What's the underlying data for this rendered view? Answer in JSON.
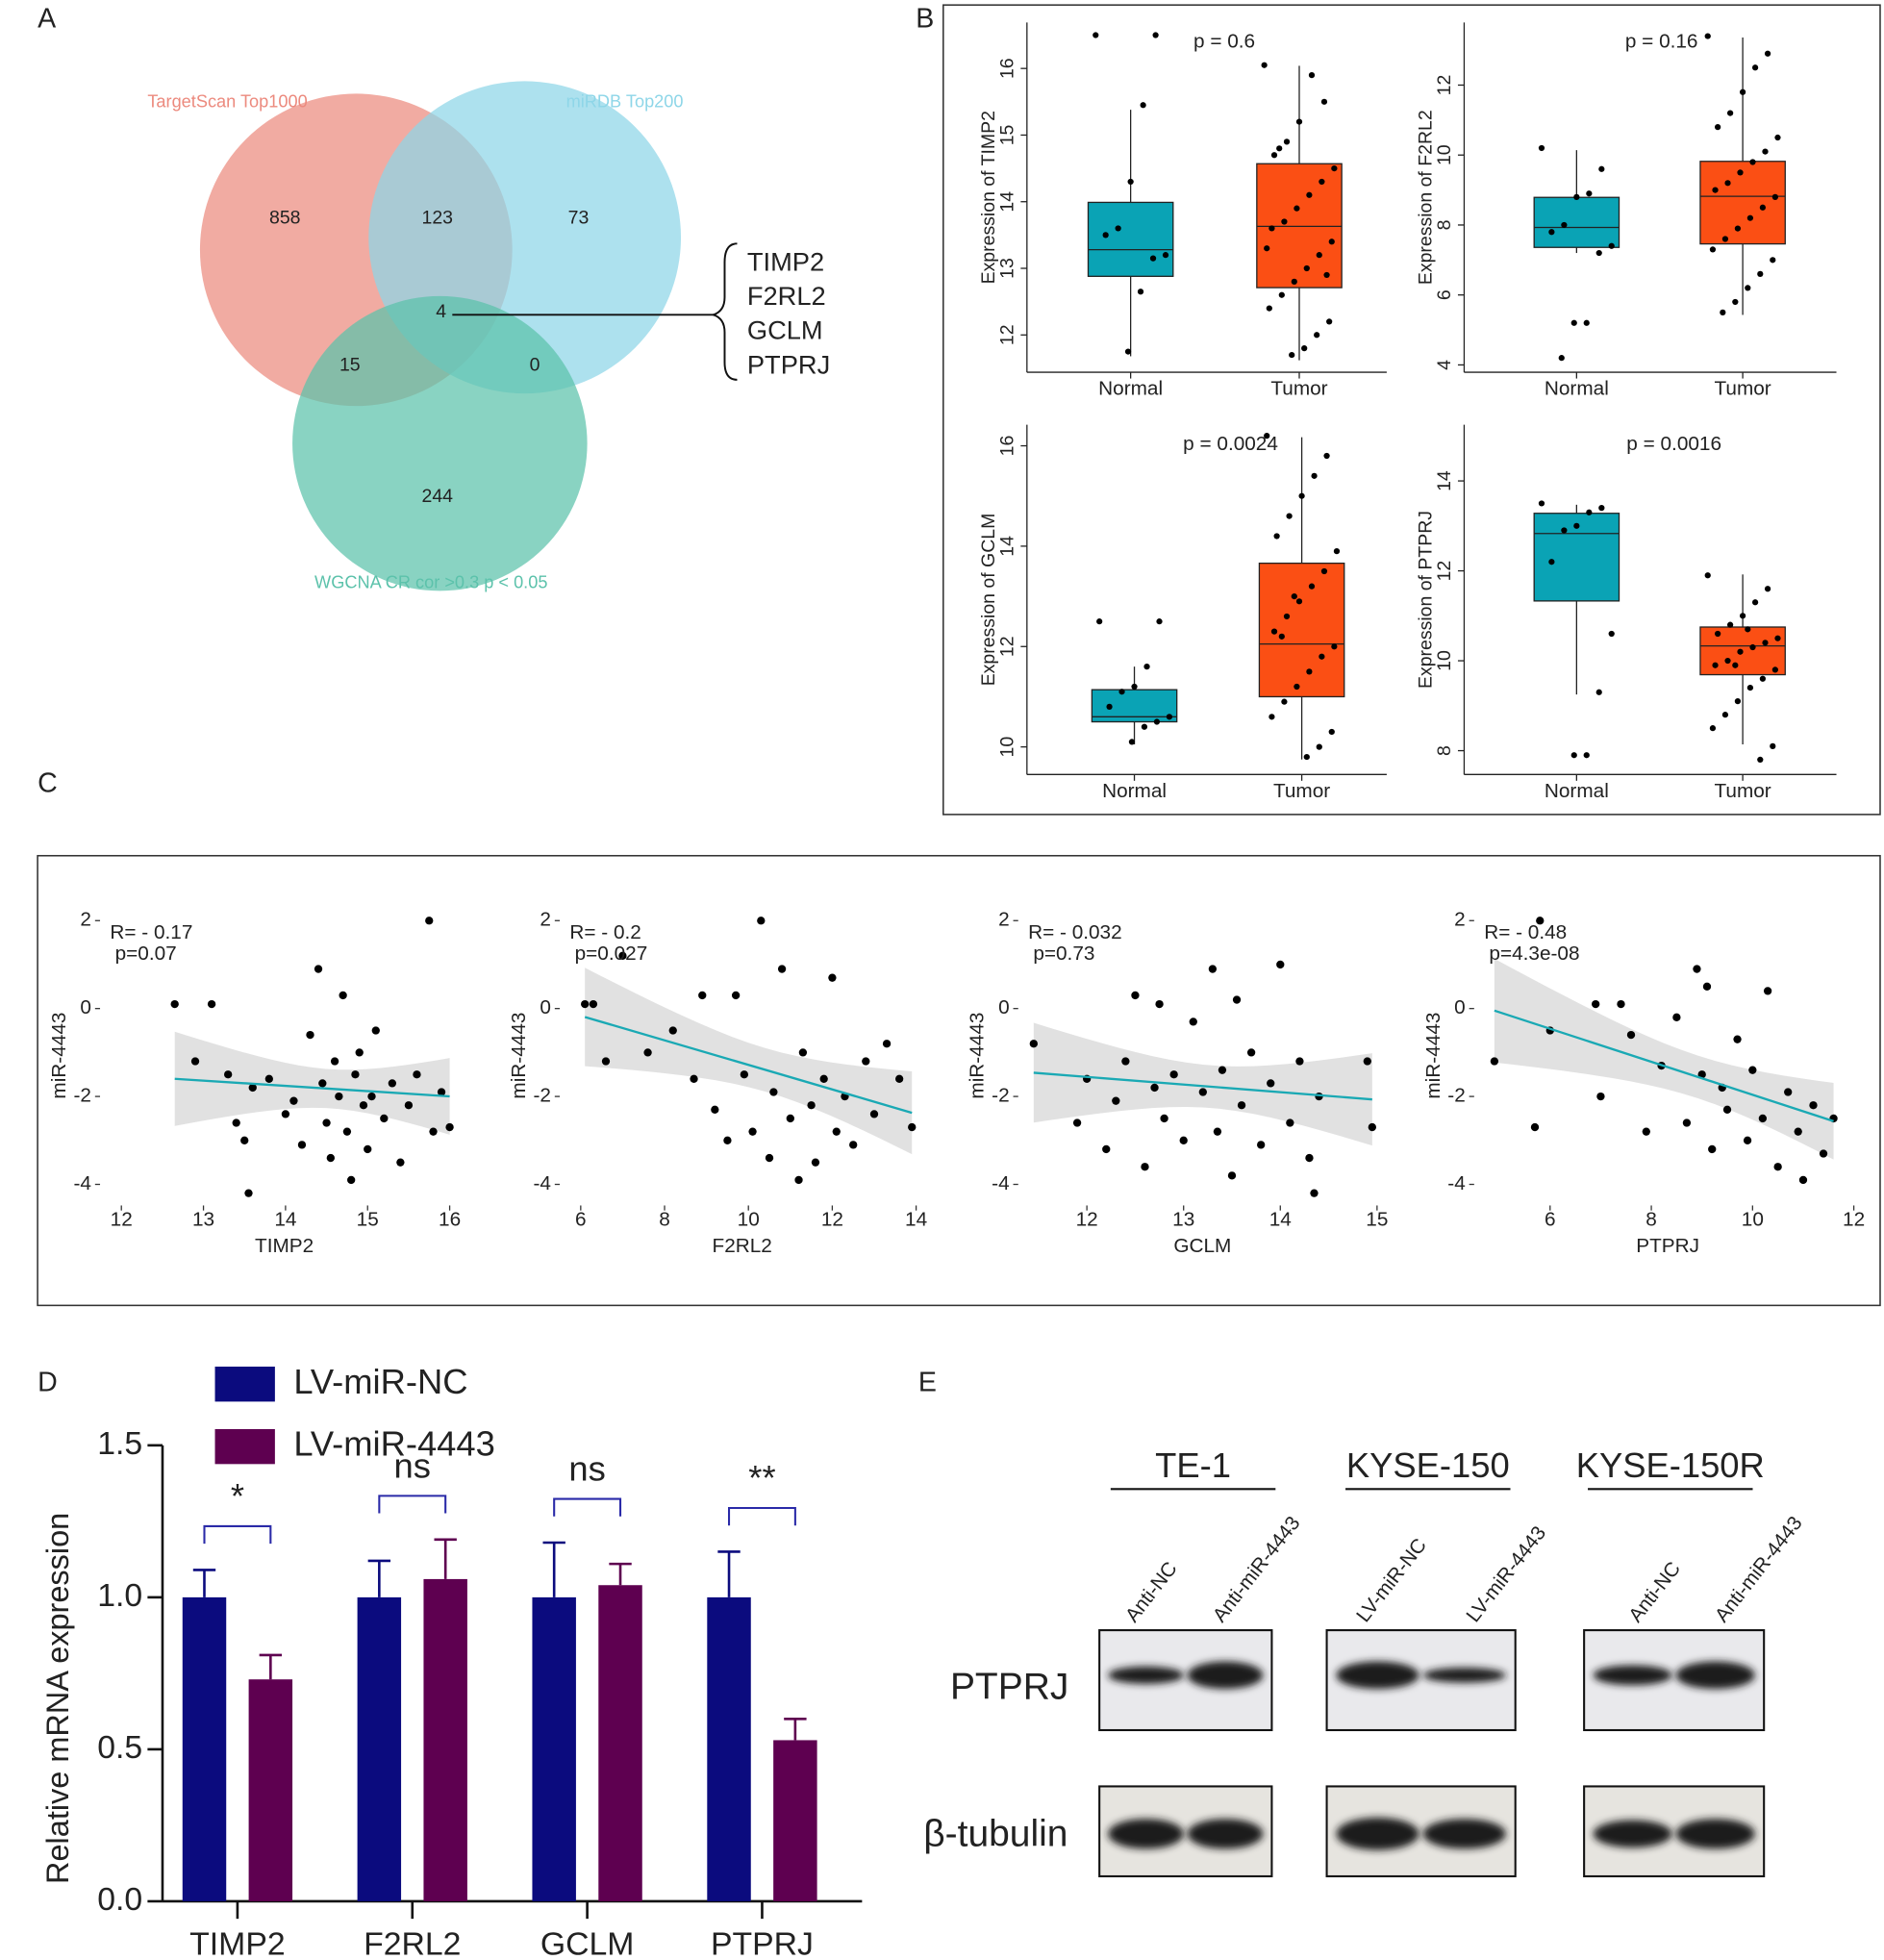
{
  "panel_labels": [
    "A",
    "B",
    "C",
    "D",
    "E"
  ],
  "chart_data": [
    {
      "type": "venn",
      "sets": [
        {
          "name": "TargetScan Top1000",
          "color": "#ec8a7e"
        },
        {
          "name": "miRDB Top200",
          "color": "#8ed6e8"
        },
        {
          "name": "WGCNA CR cor >0.3 p < 0.05",
          "color": "#5cc2ab"
        }
      ],
      "regions": [
        {
          "sets": [
            0
          ],
          "value": 858
        },
        {
          "sets": [
            0,
            1
          ],
          "value": 123
        },
        {
          "sets": [
            1
          ],
          "value": 73
        },
        {
          "sets": [
            0,
            1,
            2
          ],
          "value": 4
        },
        {
          "sets": [
            0,
            2
          ],
          "value": 15
        },
        {
          "sets": [
            1,
            2
          ],
          "value": 0
        },
        {
          "sets": [
            2
          ],
          "value": 244
        }
      ],
      "genes": [
        "TIMP2",
        "F2RL2",
        "GCLM",
        "PTPRJ"
      ]
    },
    {
      "type": "box",
      "ylabel": "Expression of TIMP2",
      "p_label": "p = 0.6",
      "categories": [
        "Normal",
        "Tumor"
      ],
      "colors": [
        "#0aa3b5",
        "#fb4f14"
      ],
      "boxes": [
        {
          "whislo": 11.68,
          "q1": 12.88,
          "median": 13.28,
          "q3": 13.99,
          "whishi": 15.38
        },
        {
          "whislo": 11.62,
          "q1": 12.71,
          "median": 13.63,
          "q3": 14.57,
          "whishi": 16.04
        }
      ],
      "points": [
        [
          16.5,
          16.5,
          15.45,
          14.3,
          13.6,
          13.5,
          13.2,
          13.15,
          12.65,
          11.75
        ],
        [
          16.05,
          15.5,
          15.9,
          15.2,
          14.9,
          14.7,
          14.5,
          14.3,
          14.1,
          13.9,
          13.7,
          13.6,
          13.4,
          13.2,
          13.0,
          12.8,
          12.6,
          12.4,
          12.2,
          12.0,
          11.8,
          11.7,
          14.8,
          13.3,
          12.9
        ]
      ],
      "ylim": [
        11.44,
        16.69
      ],
      "yticks": [
        12,
        13,
        14,
        15,
        16
      ]
    },
    {
      "type": "box",
      "ylabel": "Expression of F2RL2",
      "p_label": "p = 0.16",
      "categories": [
        "Normal",
        "Tumor"
      ],
      "colors": [
        "#0aa3b5",
        "#fb4f14"
      ],
      "boxes": [
        {
          "whislo": 7.2,
          "q1": 7.36,
          "median": 7.93,
          "q3": 8.79,
          "whishi": 10.14
        },
        {
          "whislo": 5.43,
          "q1": 7.46,
          "median": 8.82,
          "q3": 9.82,
          "whishi": 13.36
        }
      ],
      "points": [
        [
          10.2,
          9.6,
          8.9,
          8.8,
          8.0,
          7.8,
          7.4,
          7.2,
          5.2,
          5.2,
          4.2
        ],
        [
          13.4,
          12.9,
          12.5,
          11.8,
          11.2,
          10.8,
          10.5,
          10.1,
          9.8,
          9.5,
          9.2,
          9.0,
          8.8,
          8.5,
          8.2,
          7.9,
          7.6,
          7.3,
          7.0,
          6.6,
          6.2,
          5.8,
          5.5
        ]
      ],
      "ylim": [
        3.79,
        13.79
      ],
      "yticks": [
        4,
        6,
        8,
        10,
        12
      ]
    },
    {
      "type": "box",
      "ylabel": "Expression of GCLM",
      "p_label": "p = 0.0024",
      "categories": [
        "Normal",
        "Tumor"
      ],
      "colors": [
        "#0aa3b5",
        "#fb4f14"
      ],
      "boxes": [
        {
          "whislo": 10.05,
          "q1": 10.5,
          "median": 10.6,
          "q3": 11.14,
          "whishi": 11.6
        },
        {
          "whislo": 9.75,
          "q1": 11.0,
          "median": 12.05,
          "q3": 13.66,
          "whishi": 16.17
        }
      ],
      "points": [
        [
          12.5,
          12.5,
          11.6,
          11.2,
          11.1,
          10.8,
          10.6,
          10.5,
          10.4,
          10.1
        ],
        [
          16.2,
          15.8,
          15.4,
          15.0,
          14.6,
          14.2,
          13.9,
          13.5,
          13.2,
          12.9,
          12.6,
          12.3,
          12.0,
          11.8,
          11.5,
          11.2,
          10.9,
          10.6,
          10.3,
          10.0,
          9.8,
          13.0,
          12.2
        ]
      ],
      "ylim": [
        9.45,
        16.42
      ],
      "yticks": [
        10,
        12,
        14,
        16
      ]
    },
    {
      "type": "box",
      "ylabel": "Expression of PTPRJ",
      "p_label": "p = 0.0016",
      "categories": [
        "Normal",
        "Tumor"
      ],
      "colors": [
        "#0aa3b5",
        "#fb4f14"
      ],
      "boxes": [
        {
          "whislo": 9.25,
          "q1": 11.33,
          "median": 12.83,
          "q3": 13.28,
          "whishi": 13.47
        },
        {
          "whislo": 8.14,
          "q1": 9.69,
          "median": 10.33,
          "q3": 10.75,
          "whishi": 11.92
        }
      ],
      "points": [
        [
          13.5,
          13.4,
          13.3,
          13.0,
          12.9,
          12.2,
          10.6,
          9.3,
          7.9,
          7.9
        ],
        [
          11.9,
          11.6,
          11.3,
          11.0,
          10.8,
          10.6,
          10.5,
          10.4,
          10.3,
          10.2,
          10.0,
          9.9,
          9.8,
          9.6,
          9.4,
          9.1,
          8.8,
          8.5,
          8.1,
          7.8,
          10.7,
          9.9
        ]
      ],
      "ylim": [
        7.47,
        15.25
      ],
      "yticks": [
        8,
        10,
        12,
        14
      ]
    },
    {
      "type": "scatter",
      "xlabel": "TIMP2",
      "ylabel": "miR-4443",
      "r_label": "R= - 0.17",
      "p_label": "p=0.07",
      "line_color": "#1aa9b4",
      "x": [
        12.65,
        12.9,
        13.1,
        13.3,
        13.4,
        13.5,
        13.55,
        13.6,
        13.8,
        14.0,
        14.1,
        14.2,
        14.3,
        14.4,
        14.45,
        14.5,
        14.55,
        14.6,
        14.65,
        14.7,
        14.75,
        14.8,
        14.85,
        14.9,
        14.95,
        15.0,
        15.05,
        15.1,
        15.2,
        15.3,
        15.4,
        15.5,
        15.6,
        15.75,
        15.8,
        15.9,
        16.0
      ],
      "y": [
        0.1,
        -1.2,
        0.1,
        -1.5,
        -2.6,
        -3.0,
        -4.2,
        -1.8,
        -1.6,
        -2.4,
        -2.1,
        -3.1,
        -0.6,
        0.9,
        -1.7,
        -2.6,
        -3.4,
        -1.2,
        -2.0,
        0.3,
        -2.8,
        -3.9,
        -1.5,
        -1.0,
        -2.2,
        -3.2,
        -2.0,
        -0.5,
        -2.5,
        -1.7,
        -3.5,
        -2.2,
        -1.5,
        2.0,
        -2.8,
        -1.9,
        -2.7
      ],
      "xlim": [
        11.74,
        16.23
      ],
      "ylim": [
        -4.48,
        2.34
      ],
      "xticks": [
        12,
        13,
        14,
        15,
        16
      ],
      "yticks": [
        -4,
        -2,
        0,
        2
      ]
    },
    {
      "type": "scatter",
      "xlabel": "F2RL2",
      "ylabel": "miR-4443",
      "r_label": "R= - 0.2",
      "p_label": "p=0.027",
      "line_color": "#1aa9b4",
      "x": [
        6.1,
        6.3,
        6.6,
        7.0,
        7.6,
        8.2,
        8.7,
        8.9,
        9.2,
        9.5,
        9.7,
        9.9,
        10.1,
        10.3,
        10.5,
        10.6,
        10.8,
        11.0,
        11.2,
        11.3,
        11.5,
        11.6,
        11.8,
        12.0,
        12.1,
        12.3,
        12.5,
        12.8,
        13.0,
        13.3,
        13.6,
        13.9
      ],
      "y": [
        0.1,
        0.1,
        -1.2,
        1.2,
        -1.0,
        -0.5,
        -1.6,
        0.3,
        -2.3,
        -3.0,
        0.3,
        -1.5,
        -2.8,
        2.0,
        -3.4,
        -1.9,
        0.9,
        -2.5,
        -3.9,
        -1.0,
        -2.2,
        -3.5,
        -1.6,
        0.7,
        -2.8,
        -2.0,
        -3.1,
        -1.2,
        -2.4,
        -0.8,
        -1.6,
        -2.7
      ],
      "xlim": [
        5.5,
        14.2
      ],
      "ylim": [
        -4.48,
        2.34
      ],
      "xticks": [
        6,
        8,
        10,
        12,
        14
      ],
      "yticks": [
        -4,
        -2,
        0,
        2
      ]
    },
    {
      "type": "scatter",
      "xlabel": "GCLM",
      "ylabel": "miR-4443",
      "r_label": "R= - 0.032",
      "p_label": "p=0.73",
      "line_color": "#1aa9b4",
      "x": [
        11.45,
        11.9,
        12.0,
        12.2,
        12.3,
        12.4,
        12.5,
        12.6,
        12.7,
        12.75,
        12.8,
        12.9,
        13.0,
        13.1,
        13.2,
        13.3,
        13.35,
        13.4,
        13.5,
        13.55,
        13.6,
        13.7,
        13.8,
        13.9,
        14.0,
        14.1,
        14.2,
        14.3,
        14.35,
        14.4,
        14.9,
        14.95
      ],
      "y": [
        -0.8,
        -2.6,
        -1.6,
        -3.2,
        -2.1,
        -1.2,
        0.3,
        -3.6,
        -1.8,
        0.1,
        -2.5,
        -1.5,
        -3.0,
        -0.3,
        -1.9,
        0.9,
        -2.8,
        -1.4,
        -3.8,
        0.2,
        -2.2,
        -1.0,
        -3.1,
        -1.7,
        1.0,
        -2.6,
        -1.2,
        -3.4,
        -4.2,
        -2.0,
        -1.2,
        -2.7
      ],
      "xlim": [
        11.29,
        15.1
      ],
      "ylim": [
        -4.48,
        2.34
      ],
      "xticks": [
        12,
        13,
        14,
        15
      ],
      "yticks": [
        -4,
        -2,
        0,
        2
      ]
    },
    {
      "type": "scatter",
      "xlabel": "PTPRJ",
      "ylabel": "miR-4443",
      "r_label": "R= - 0.48",
      "p_label": "p=4.3e-08",
      "line_color": "#1aa9b4",
      "x": [
        4.9,
        5.7,
        5.8,
        6.0,
        6.9,
        7.0,
        7.4,
        7.6,
        7.9,
        8.2,
        8.5,
        8.7,
        8.9,
        9.0,
        9.1,
        9.2,
        9.4,
        9.5,
        9.7,
        9.9,
        10.0,
        10.2,
        10.3,
        10.5,
        10.7,
        10.9,
        11.0,
        11.2,
        11.4,
        11.6
      ],
      "y": [
        -1.2,
        -2.7,
        2.0,
        -0.5,
        0.1,
        -2.0,
        0.1,
        -0.6,
        -2.8,
        -1.3,
        -0.2,
        -2.6,
        0.9,
        -1.5,
        0.5,
        -3.2,
        -1.8,
        -2.3,
        -0.7,
        -3.0,
        -1.4,
        -2.5,
        0.4,
        -3.6,
        -1.9,
        -2.8,
        -3.9,
        -2.2,
        -3.3,
        -2.5
      ],
      "xlim": [
        4.5,
        12.15
      ],
      "ylim": [
        -4.48,
        2.34
      ],
      "xticks": [
        6,
        8,
        10,
        12
      ],
      "yticks": [
        -4,
        -2,
        0,
        2
      ]
    },
    {
      "type": "bar",
      "ylabel": "Relative mRNA expression",
      "categories": [
        "TIMP2",
        "F2RL2",
        "GCLM",
        "PTPRJ"
      ],
      "series": [
        {
          "name": "LV-miR-NC",
          "color": "#0b0b7e",
          "values": [
            1,
            1,
            1,
            1
          ],
          "errors": [
            0.09,
            0.12,
            0.18,
            0.15
          ]
        },
        {
          "name": "LV-miR-4443",
          "color": "#5e0050",
          "values": [
            0.73,
            1.06,
            1.04,
            0.53
          ],
          "errors": [
            0.08,
            0.13,
            0.07,
            0.07
          ]
        }
      ],
      "significance": [
        "*",
        "ns",
        "ns",
        "**"
      ],
      "ylim": [
        0,
        1.5
      ],
      "yticks": [
        {
          "value": 0,
          "label": "0.0"
        },
        {
          "value": 0.5,
          "label": "0.5"
        },
        {
          "value": 1,
          "label": "1.0"
        },
        {
          "value": 1.5,
          "label": "1.5"
        }
      ]
    }
  ],
  "blot": {
    "groups": [
      {
        "name": "TE-1",
        "lanes": [
          "Anti-NC",
          "Anti-miR-4443"
        ]
      },
      {
        "name": "KYSE-150",
        "lanes": [
          "LV-miR-NC",
          "LV-miR-4443"
        ]
      },
      {
        "name": "KYSE-150R",
        "lanes": [
          "Anti-NC",
          "Anti-miR-4443"
        ]
      }
    ],
    "rows": [
      "PTPRJ",
      "β-tubulin"
    ]
  }
}
